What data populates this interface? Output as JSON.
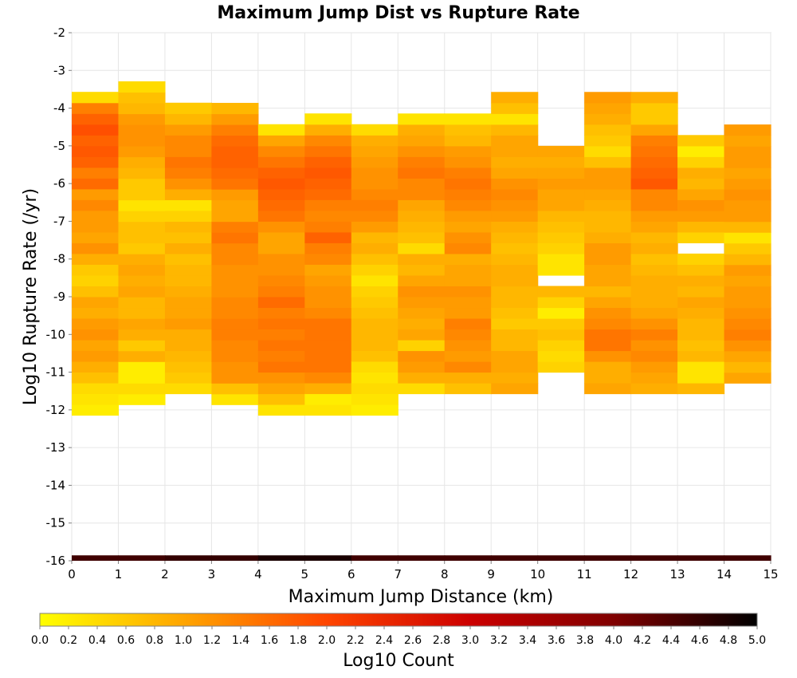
{
  "chart_data": {
    "type": "heatmap",
    "title": "Maximum Jump Dist vs Rupture Rate",
    "xlabel": "Maximum Jump Distance (km)",
    "ylabel": "Log10 Rupture Rate (/yr)",
    "xlim": [
      0,
      15
    ],
    "ylim": [
      -16,
      -2
    ],
    "x_ticks": [
      "0",
      "1",
      "2",
      "3",
      "4",
      "5",
      "6",
      "7",
      "8",
      "9",
      "10",
      "11",
      "12",
      "13",
      "14",
      "15"
    ],
    "y_ticks": [
      "-2",
      "-3",
      "-4",
      "-5",
      "-6",
      "-7",
      "-8",
      "-9",
      "-10",
      "-11",
      "-12",
      "-13",
      "-14",
      "-15",
      "-16"
    ],
    "colorbar": {
      "label": "Log10 Count",
      "range": [
        0,
        5
      ],
      "ticks": [
        "0.0",
        "0.2",
        "0.4",
        "0.6",
        "0.8",
        "1.0",
        "1.2",
        "1.4",
        "1.6",
        "1.8",
        "2.0",
        "2.2",
        "2.4",
        "2.6",
        "2.8",
        "3.0",
        "3.2",
        "3.4",
        "3.6",
        "3.8",
        "4.0",
        "4.2",
        "4.4",
        "4.6",
        "4.8",
        "5.0"
      ],
      "colors": [
        "#ffff00",
        "#ffa500",
        "#ff4500",
        "#cc0000",
        "#800000",
        "#000000"
      ]
    },
    "bin_width_x": 1,
    "bin_height_y": 0.2857,
    "columns": [
      {
        "x_start": 0,
        "y_bottom": -12.14,
        "values": [
          0.2,
          0.3,
          0.4,
          0.7,
          0.9,
          1.1,
          1.0,
          1.2,
          1.1,
          0.9,
          1.0,
          0.7,
          0.5,
          0.6,
          0.9,
          1.2,
          1.0,
          1.1,
          1.1,
          1.3,
          1.1,
          1.6,
          1.4,
          1.7,
          1.8,
          1.7,
          1.9,
          1.7,
          1.4,
          0.4
        ]
      },
      {
        "x_start": 1,
        "y_bottom": -11.86,
        "values": [
          0.2,
          0.4,
          0.2,
          0.2,
          0.9,
          0.6,
          0.9,
          1.0,
          0.8,
          0.8,
          1.0,
          0.9,
          1.0,
          0.9,
          0.6,
          0.7,
          0.7,
          0.5,
          0.3,
          0.6,
          0.6,
          0.8,
          0.9,
          1.1,
          1.2,
          1.2,
          1.1,
          0.8,
          0.7,
          0.4
        ]
      },
      {
        "x_start": 2,
        "y_bottom": -11.57,
        "values": [
          0.4,
          0.6,
          0.7,
          0.8,
          0.9,
          0.9,
          1.1,
          1.0,
          1.0,
          0.9,
          0.8,
          0.8,
          0.7,
          0.9,
          0.7,
          0.8,
          0.5,
          0.3,
          0.9,
          1.2,
          1.4,
          1.5,
          1.3,
          1.3,
          1.1,
          0.8,
          0.6
        ]
      },
      {
        "x_start": 3,
        "y_bottom": -11.86,
        "values": [
          0.3,
          0.7,
          1.2,
          1.2,
          1.3,
          1.3,
          1.4,
          1.4,
          1.3,
          1.3,
          1.2,
          1.2,
          1.2,
          1.3,
          1.3,
          1.5,
          1.4,
          1.0,
          1.0,
          1.1,
          1.5,
          1.6,
          1.7,
          1.7,
          1.6,
          1.4,
          1.1,
          0.8
        ]
      },
      {
        "x_start": 4,
        "y_bottom": -12.14,
        "values": [
          0.3,
          0.7,
          1.0,
          1.2,
          1.5,
          1.4,
          1.5,
          1.4,
          1.5,
          1.4,
          1.6,
          1.4,
          1.3,
          1.2,
          1.2,
          1.0,
          1.0,
          1.2,
          1.5,
          1.6,
          1.7,
          1.8,
          1.7,
          1.5,
          1.3,
          1.0,
          0.3
        ]
      },
      {
        "x_start": 5,
        "y_bottom": -12.14,
        "values": [
          0.3,
          0.2,
          0.9,
          1.3,
          1.5,
          1.5,
          1.5,
          1.5,
          1.5,
          1.3,
          1.2,
          1.2,
          1.1,
          1.0,
          1.3,
          1.4,
          1.7,
          1.4,
          1.3,
          1.4,
          1.6,
          1.7,
          1.8,
          1.7,
          1.5,
          1.3,
          0.9,
          0.3
        ]
      },
      {
        "x_start": 6,
        "y_bottom": -12.14,
        "values": [
          0.2,
          0.3,
          0.4,
          0.3,
          0.4,
          0.7,
          0.8,
          0.8,
          0.8,
          0.7,
          0.6,
          0.5,
          0.3,
          0.5,
          0.7,
          0.9,
          0.8,
          1.1,
          1.3,
          1.4,
          1.3,
          1.2,
          1.2,
          1.1,
          1.0,
          0.9,
          0.4
        ]
      },
      {
        "x_start": 7,
        "y_bottom": -11.57,
        "values": [
          0.4,
          0.9,
          1.1,
          1.2,
          0.5,
          1.0,
          0.9,
          1.0,
          1.1,
          1.2,
          1.0,
          0.8,
          0.9,
          0.4,
          0.7,
          0.8,
          0.9,
          1.0,
          1.3,
          1.3,
          1.5,
          1.4,
          1.2,
          1.0,
          0.9,
          0.3
        ]
      },
      {
        "x_start": 8,
        "y_bottom": -11.57,
        "values": [
          0.7,
          0.9,
          1.3,
          1.1,
          1.2,
          1.3,
          1.4,
          1.1,
          1.1,
          1.2,
          1.0,
          1.0,
          0.9,
          1.3,
          1.2,
          1.0,
          1.1,
          1.3,
          1.4,
          1.5,
          1.4,
          1.2,
          1.1,
          0.8,
          0.7,
          0.3
        ]
      },
      {
        "x_start": 9,
        "y_bottom": -11.57,
        "values": [
          1.0,
          0.9,
          1.0,
          1.0,
          0.8,
          0.8,
          0.6,
          0.7,
          0.8,
          0.8,
          0.9,
          0.9,
          0.8,
          0.7,
          0.8,
          0.9,
          1.1,
          1.2,
          1.3,
          1.2,
          1.0,
          0.9,
          1.0,
          1.0,
          0.8,
          0.3,
          0.7,
          0.9
        ]
      },
      {
        "x_start": 10,
        "y_bottom": -11.0,
        "values": [
          0.5,
          0.4,
          0.5,
          0.7,
          0.6,
          0.2,
          0.5,
          0.8,
          null,
          0.3,
          0.3,
          0.5,
          0.6,
          0.7,
          0.8,
          1.0,
          1.0,
          1.1,
          1.0,
          0.9,
          1.0
        ]
      },
      {
        "x_start": 11,
        "y_bottom": -11.57,
        "values": [
          1.0,
          0.9,
          0.9,
          1.2,
          1.5,
          1.5,
          1.3,
          1.2,
          1.0,
          0.8,
          1.0,
          1.0,
          1.1,
          1.1,
          0.9,
          0.8,
          0.8,
          0.9,
          1.0,
          1.1,
          1.1,
          0.7,
          0.4,
          0.6,
          0.7,
          0.9,
          1.0,
          1.1
        ]
      },
      {
        "x_start": 12,
        "y_bottom": -11.57,
        "values": [
          0.9,
          1.0,
          1.1,
          1.3,
          1.2,
          1.4,
          1.2,
          1.0,
          0.9,
          0.9,
          0.9,
          0.8,
          0.7,
          0.9,
          0.8,
          1.0,
          1.1,
          1.3,
          1.3,
          1.8,
          1.7,
          1.6,
          1.5,
          1.4,
          1.0,
          0.6,
          0.6,
          0.9
        ]
      },
      {
        "x_start": 13,
        "y_bottom": -11.57,
        "values": [
          0.8,
          0.3,
          0.3,
          0.8,
          0.7,
          0.8,
          0.8,
          0.9,
          1.0,
          0.8,
          0.9,
          0.7,
          0.5,
          null,
          0.5,
          0.8,
          1.1,
          1.2,
          1.0,
          0.8,
          0.9,
          0.5,
          0.2,
          0.6
        ]
      },
      {
        "x_start": 14,
        "y_bottom": -11.29,
        "values": [
          1.0,
          0.8,
          1.0,
          1.2,
          1.4,
          1.3,
          1.2,
          1.1,
          1.1,
          1.0,
          1.1,
          0.8,
          0.6,
          0.3,
          0.8,
          1.1,
          1.1,
          1.2,
          1.1,
          1.0,
          1.1,
          1.1,
          1.0,
          1.1
        ]
      }
    ],
    "bottom_band": {
      "y_bottom": -16.0,
      "height": 0.143,
      "values": [
        4.5,
        4.5,
        4.6,
        4.6,
        4.8,
        4.8,
        4.5,
        4.5,
        4.5,
        4.5,
        4.5,
        4.5,
        4.5,
        4.5,
        4.5
      ]
    }
  }
}
